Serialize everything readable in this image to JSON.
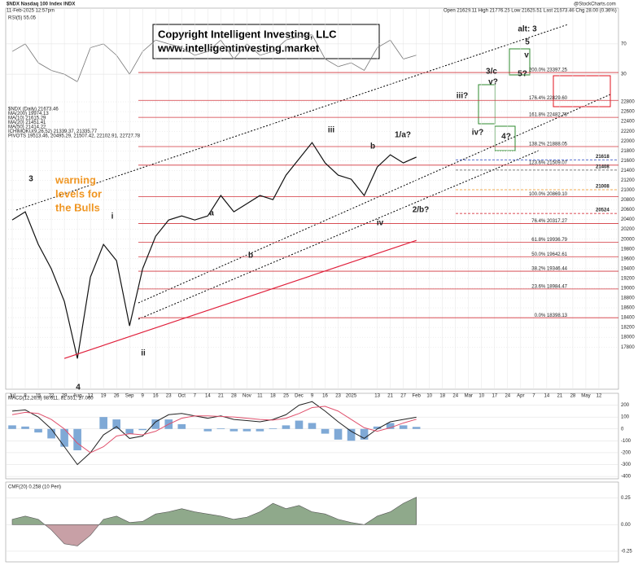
{
  "header": {
    "symbol": "$NDX Nasdaq 100 Index INDX",
    "date": "11-Feb-2025 12:57pm",
    "quote": "Open 21629.11  High 21776.25  Low 21625.51  Last 21673.46  Chg 28.00 (0.36%)",
    "source": "@StockCharts.com"
  },
  "copyright": [
    "Copyright Intelligent Investing, LLC",
    "www.intelligentinvesting.market"
  ],
  "warning": [
    "warning",
    "levels for",
    "the Bulls"
  ],
  "chart_data": [
    {
      "type": "line",
      "title": "RSI(5) 55.05",
      "x": [
        0,
        1,
        2,
        3,
        4,
        5,
        6,
        7,
        8,
        9,
        10,
        11,
        12,
        13,
        14,
        15,
        16,
        17,
        18,
        19,
        20,
        21,
        22,
        23,
        24,
        25,
        26,
        27,
        28,
        29,
        30,
        31
      ],
      "xlim": [
        -0.5,
        46.5
      ],
      "ylim": [
        0,
        100
      ],
      "yticks": [
        70,
        30
      ],
      "series": [
        {
          "color": "#777777",
          "values": [
            60,
            70,
            45,
            35,
            30,
            20,
            65,
            70,
            55,
            30,
            60,
            75,
            70,
            65,
            55,
            60,
            75,
            50,
            70,
            55,
            60,
            75,
            80,
            82,
            50,
            40,
            45,
            35,
            65,
            75,
            50,
            55.05
          ]
        }
      ]
    },
    {
      "type": "line",
      "x": [
        0,
        1,
        2,
        3,
        4,
        5,
        6,
        7,
        8,
        9,
        10,
        11,
        12,
        13,
        14,
        15,
        16,
        17,
        18,
        19,
        20,
        21,
        22,
        23,
        24,
        25,
        26,
        27,
        28,
        29,
        30,
        31
      ],
      "xlim": [
        -0.5,
        46.5
      ],
      "ylim": [
        16940,
        24710
      ],
      "xticks": [
        {
          "value": 0,
          "label": "Jul"
        },
        {
          "value": 1,
          "label": "8"
        },
        {
          "value": 2,
          "label": "15"
        },
        {
          "value": 3,
          "label": "22"
        },
        {
          "value": 4,
          "label": "29"
        },
        {
          "value": 5,
          "label": "Aug"
        },
        {
          "value": 6,
          "label": "12"
        },
        {
          "value": 7,
          "label": "19"
        },
        {
          "value": 8,
          "label": "26"
        },
        {
          "value": 9,
          "label": "Sep"
        },
        {
          "value": 10,
          "label": "9"
        },
        {
          "value": 11,
          "label": "16"
        },
        {
          "value": 12,
          "label": "23"
        },
        {
          "value": 13,
          "label": "Oct"
        },
        {
          "value": 14,
          "label": "7"
        },
        {
          "value": 15,
          "label": "14"
        },
        {
          "value": 16,
          "label": "21"
        },
        {
          "value": 17,
          "label": "28"
        },
        {
          "value": 18,
          "label": "Nov"
        },
        {
          "value": 19,
          "label": "11"
        },
        {
          "value": 20,
          "label": "18"
        },
        {
          "value": 21,
          "label": "25"
        },
        {
          "value": 22,
          "label": "Dec"
        },
        {
          "value": 23,
          "label": "9"
        },
        {
          "value": 24,
          "label": "16"
        },
        {
          "value": 25,
          "label": "23"
        },
        {
          "value": 26,
          "label": "2025"
        },
        {
          "value": 28,
          "label": "13"
        },
        {
          "value": 29,
          "label": "21"
        },
        {
          "value": 30,
          "label": "27"
        },
        {
          "value": 31,
          "label": "Feb"
        },
        {
          "value": 32,
          "label": "10"
        },
        {
          "value": 33,
          "label": "18"
        },
        {
          "value": 34,
          "label": "24"
        },
        {
          "value": 35,
          "label": "Mar"
        },
        {
          "value": 36,
          "label": "10"
        },
        {
          "value": 37,
          "label": "17"
        },
        {
          "value": 38,
          "label": "24"
        },
        {
          "value": 39,
          "label": "Apr"
        },
        {
          "value": 40,
          "label": "7"
        },
        {
          "value": 41,
          "label": "14"
        },
        {
          "value": 42,
          "label": "21"
        },
        {
          "value": 43,
          "label": "28"
        },
        {
          "value": 44,
          "label": "May"
        },
        {
          "value": 45,
          "label": "12"
        }
      ],
      "yticks": [
        17800,
        18000,
        18200,
        18400,
        18600,
        18800,
        19000,
        19200,
        19400,
        19600,
        19800,
        20000,
        20200,
        20400,
        20600,
        20800,
        21000,
        21200,
        21400,
        21600,
        21800,
        22000,
        22200,
        22400,
        22600,
        22800
      ],
      "grid": true,
      "series": [
        {
          "name": "$NDX (Daily) 21673.46",
          "color": "#111111",
          "values": [
            20391,
            20557,
            19893,
            19395,
            18730,
            17567,
            19228,
            19893,
            19561,
            18232,
            19395,
            20059,
            20391,
            20474,
            20391,
            20474,
            20890,
            20557,
            20723,
            20890,
            20806,
            21305,
            21637,
            21969,
            21554,
            21305,
            21222,
            20890,
            21471,
            21720,
            21554,
            21673.46
          ]
        },
        {
          "name": "MA(200) 19974.13",
          "color": "#e0203c",
          "x": [
            4,
            31
          ],
          "values": [
            17567,
            19974.13
          ]
        }
      ],
      "legend_extra": [
        "MA(10) 21615.29",
        "MA(20) 21451.41",
        "MA(50) 21414.22",
        "ICHIMOKU(9,26,52) 21339.37, 21335.77",
        "PIVOTS 19513.46, 20495.29, 21507.42, 22102.91, 22727.78"
      ],
      "levels": [
        {
          "label": "200.0%  23397.25",
          "value": 23397.25
        },
        {
          "label": "176.4%  22829.60",
          "value": 22829.6
        },
        {
          "label": "161.8%  22482.76",
          "value": 22482.76
        },
        {
          "label": "138.2%  21888.05",
          "value": 21888.05
        },
        {
          "label": "123.6%  21509.07",
          "value": 21509.07
        },
        {
          "label": "100.0%  20869.10",
          "value": 20869.1
        },
        {
          "label": "76.4%  20317.27",
          "value": 20317.27
        },
        {
          "label": "61.8%  19936.79",
          "value": 19936.79
        },
        {
          "label": "50.0%  19642.61",
          "value": 19642.61
        },
        {
          "label": "38.2%  19346.44",
          "value": 19346.44
        },
        {
          "label": "23.6%  18984.47",
          "value": 18984.47
        },
        {
          "label": "0.0%  18398.13",
          "value": 18398.13
        }
      ],
      "level_color": "#d2343c",
      "price_levels": [
        {
          "value": 21618,
          "color": "#1f3fbf"
        },
        {
          "value": 21408,
          "color": "#555555"
        },
        {
          "value": 21008,
          "color": "#f0941e"
        },
        {
          "value": 20524,
          "color": "#d0101c"
        }
      ],
      "annotations": [
        {
          "text": "3",
          "color": "#000000"
        },
        {
          "text": "4",
          "color": "#000000"
        },
        {
          "text": "i",
          "color": "#d0101c"
        },
        {
          "text": "ii",
          "color": "#d0101c"
        },
        {
          "text": "iii",
          "color": "#d0101c"
        },
        {
          "text": "iv",
          "color": "#d0101c"
        },
        {
          "text": "1/a?",
          "color": "#2d8a2d"
        },
        {
          "text": "2/b?",
          "color": "#2d8a2d"
        },
        {
          "text": "iii?",
          "color": "#666666"
        },
        {
          "text": "iv?",
          "color": "#666666"
        },
        {
          "text": "3/c",
          "color": "#2d8a2d"
        },
        {
          "text": "v?",
          "color": "#666666"
        },
        {
          "text": "4?",
          "color": "#2d8a2d"
        },
        {
          "text": "5?",
          "color": "#2d8a2d"
        },
        {
          "text": "v",
          "color": "#d0101c"
        },
        {
          "text": "5",
          "color": "#000000"
        },
        {
          "text": "alt: 3",
          "color": "#000000"
        },
        {
          "text": "a",
          "color": "#2d8a2d"
        },
        {
          "text": "b",
          "color": "#2d8a2d"
        },
        {
          "text": "b",
          "color": "#2d8a2d"
        }
      ]
    },
    {
      "type": "combo",
      "title": "MACD(12,26,9) 98.611, 81.551, 17.060",
      "x": [
        0,
        1,
        2,
        3,
        4,
        5,
        6,
        7,
        8,
        9,
        10,
        11,
        12,
        13,
        14,
        15,
        16,
        17,
        18,
        19,
        20,
        21,
        22,
        23,
        24,
        25,
        26,
        27,
        28,
        29,
        30,
        31
      ],
      "xlim": [
        -0.5,
        46.5
      ],
      "ylim": [
        -420,
        300
      ],
      "yticks": [
        -400,
        -300,
        -200,
        -100,
        0,
        100,
        200
      ],
      "series": [
        {
          "mark": "bar",
          "color": "#7fa9d6",
          "values": [
            30,
            20,
            -30,
            -80,
            -150,
            -180,
            0,
            100,
            80,
            -40,
            -10,
            80,
            80,
            40,
            0,
            -20,
            5,
            -20,
            -20,
            -20,
            5,
            30,
            70,
            50,
            -40,
            -90,
            -100,
            -90,
            20,
            50,
            30,
            17.06
          ]
        },
        {
          "mark": "line",
          "color": "#222222",
          "values": [
            150,
            160,
            100,
            0,
            -150,
            -300,
            -200,
            -50,
            20,
            -80,
            -60,
            60,
            120,
            130,
            110,
            90,
            110,
            80,
            70,
            60,
            80,
            120,
            200,
            230,
            150,
            60,
            -20,
            -80,
            0,
            60,
            80,
            98.611
          ]
        },
        {
          "mark": "line",
          "color": "#e0506c",
          "values": [
            120,
            140,
            130,
            80,
            0,
            -120,
            -200,
            -150,
            -60,
            -40,
            -50,
            -20,
            40,
            90,
            110,
            110,
            105,
            100,
            90,
            80,
            75,
            90,
            130,
            180,
            190,
            150,
            80,
            10,
            -20,
            10,
            50,
            81.551
          ]
        }
      ]
    },
    {
      "type": "area",
      "title": "CMF(20) 0.258 (10 Peri)",
      "x": [
        0,
        1,
        2,
        3,
        4,
        5,
        6,
        7,
        8,
        9,
        10,
        11,
        12,
        13,
        14,
        15,
        16,
        17,
        18,
        19,
        20,
        21,
        22,
        23,
        24,
        25,
        26,
        27,
        28,
        29,
        30,
        31
      ],
      "xlim": [
        -0.5,
        46.5
      ],
      "ylim": [
        -0.35,
        0.4
      ],
      "yticks": [
        -0.25,
        {
          "value": 0,
          "label": "0.00"
        },
        0.25
      ],
      "colors": [
        "#8fa98b",
        "#c8a0a6"
      ],
      "values": [
        0.05,
        0.08,
        0.05,
        -0.05,
        -0.18,
        -0.2,
        -0.1,
        0.05,
        0.08,
        0.02,
        0.03,
        0.1,
        0.12,
        0.15,
        0.12,
        0.1,
        0.08,
        0.05,
        0.07,
        0.12,
        0.2,
        0.15,
        0.18,
        0.12,
        0.1,
        0.05,
        0.02,
        0.0,
        0.08,
        0.12,
        0.2,
        0.258
      ]
    }
  ]
}
